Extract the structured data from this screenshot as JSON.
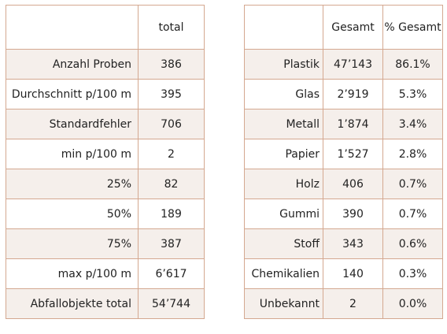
{
  "summary_table": {
    "header_blank": "",
    "header_total": "total",
    "rows": [
      {
        "label": "Anzahl Proben",
        "value": "386"
      },
      {
        "label": "Durchschnitt p/100 m",
        "value": "395"
      },
      {
        "label": "Standardfehler",
        "value": "706"
      },
      {
        "label": "min p/100 m",
        "value": "2"
      },
      {
        "label": "25%",
        "value": "82"
      },
      {
        "label": "50%",
        "value": "189"
      },
      {
        "label": "75%",
        "value": "387"
      },
      {
        "label": "max p/100 m",
        "value": "6’617"
      },
      {
        "label": "Abfallobjekte total",
        "value": "54’744"
      }
    ]
  },
  "material_table": {
    "header_blank": "",
    "header_total": "Gesamt",
    "header_percent": "% Gesamt",
    "rows": [
      {
        "material": "Plastik",
        "total": "47’143",
        "percent": "86.1%"
      },
      {
        "material": "Glas",
        "total": "2’919",
        "percent": "5.3%"
      },
      {
        "material": "Metall",
        "total": "1’874",
        "percent": "3.4%"
      },
      {
        "material": "Papier",
        "total": "1’527",
        "percent": "2.8%"
      },
      {
        "material": "Holz",
        "total": "406",
        "percent": "0.7%"
      },
      {
        "material": "Gummi",
        "total": "390",
        "percent": "0.7%"
      },
      {
        "material": "Stoff",
        "total": "343",
        "percent": "0.6%"
      },
      {
        "material": "Chemikalien",
        "total": "140",
        "percent": "0.3%"
      },
      {
        "material": "Unbekannt",
        "total": "2",
        "percent": "0.0%"
      }
    ]
  },
  "colors": {
    "border": "#d4a890",
    "row_shade": "#f5efeb",
    "text": "#222222"
  }
}
